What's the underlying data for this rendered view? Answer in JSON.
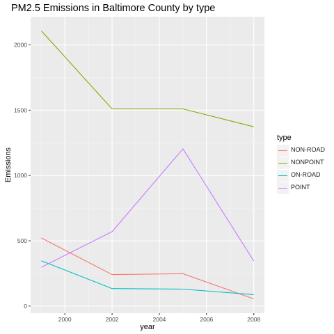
{
  "chart_data": {
    "type": "line",
    "title": "PM2.5 Emissions in Baltimore County by type",
    "xlabel": "year",
    "ylabel": "Emissions",
    "x": [
      1999,
      2002,
      2005,
      2008
    ],
    "xlim": [
      1998.55,
      2008.45
    ],
    "ylim": [
      -54,
      2216
    ],
    "xticks": [
      2000,
      2002,
      2004,
      2006,
      2008
    ],
    "yticks": [
      0,
      500,
      1000,
      1500,
      2000
    ],
    "grid": true,
    "legend": {
      "title": "type",
      "position": "right"
    },
    "series": [
      {
        "name": "NON-ROAD",
        "color": "#F8766D",
        "values": [
          522,
          241,
          248,
          55
        ]
      },
      {
        "name": "NONPOINT",
        "color": "#7CAE00",
        "values": [
          2108,
          1510,
          1510,
          1373
        ]
      },
      {
        "name": "ON-ROAD",
        "color": "#00BFC4",
        "values": [
          347,
          134,
          130,
          88
        ]
      },
      {
        "name": "POINT",
        "color": "#C77CFF",
        "values": [
          297,
          570,
          1204,
          345
        ]
      }
    ]
  }
}
